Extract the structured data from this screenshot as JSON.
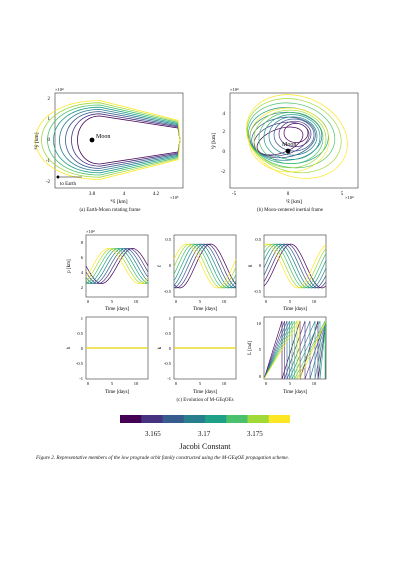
{
  "panel_a": {
    "caption": "(a) Earth-Moon rotating frame",
    "xlabel": "ᴿx̂ [km]",
    "ylabel": "ᴿŷ [km]",
    "exp_y": "×10⁴",
    "exp_x": "×10⁵",
    "xticks": [
      "3.8",
      "4",
      "4.2"
    ],
    "yticks": [
      "2",
      "1",
      "0",
      "-1",
      "-2"
    ],
    "moon_label": "Moon",
    "earth_label": "to Earth"
  },
  "panel_b": {
    "caption": "(b) Moon-centered inertial frame",
    "xlabel": "ᴵx̂ [km]",
    "ylabel": "ᴵŷ [km]",
    "exp_y": "×10⁴",
    "exp_x": "×10⁴",
    "xticks": [
      "-5",
      "0",
      "5"
    ],
    "yticks": [
      "4",
      "2",
      "0",
      "-2"
    ],
    "moon_label": "Moon"
  },
  "panel_c": {
    "caption": "(c) Evolution of M-GEqOEs",
    "time_days": "Time [days]",
    "top_exp": "×10⁴",
    "top_ylabels": [
      "p [km]",
      "f",
      "g"
    ],
    "bottom_ylabels": [
      "h",
      "k",
      "L [rad]"
    ],
    "top1_yticks": [
      "8",
      "6",
      "4",
      "2"
    ],
    "top2_yticks": [
      "0.5",
      "0",
      "-0.5"
    ],
    "top3_yticks": [
      "0.5",
      "0",
      "-0.5"
    ],
    "zero_one_yticks": [
      "1",
      "0.5",
      "0",
      "-0.5",
      "-1"
    ],
    "L_yticks": [
      "10",
      "5",
      "0"
    ],
    "xticks": [
      "0",
      "5",
      "10"
    ]
  },
  "colorbar": {
    "ticks": [
      "3.165",
      "3.17",
      "3.175"
    ],
    "label": "Jacobi Constant",
    "colors": [
      "#440154",
      "#46327e",
      "#365c8d",
      "#277f8e",
      "#1fa187",
      "#4ac16d",
      "#a0da39",
      "#fde725"
    ]
  },
  "figure_caption": "Figure 2. Representative members of the low prograde orbit family constructed using the M-GEqOE propagation scheme."
}
